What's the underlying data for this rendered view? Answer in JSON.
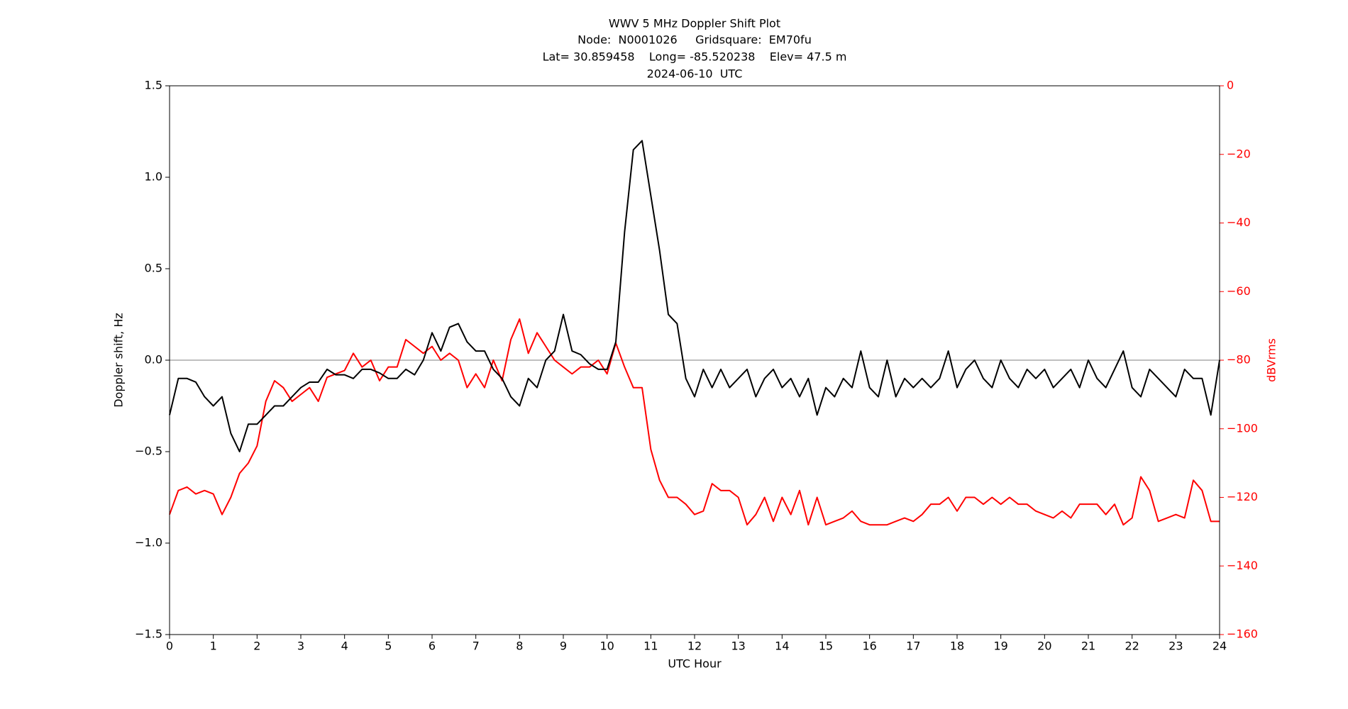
{
  "chart_data": {
    "type": "line",
    "title": [
      "WWV 5 MHz Doppler Shift Plot",
      "Node:  N0001026     Gridsquare:  EM70fu",
      "Lat= 30.859458    Long= -85.520238    Elev= 47.5 m",
      "2024-06-10  UTC"
    ],
    "xlabel": "UTC Hour",
    "ylabel": "Doppler shift, Hz",
    "y2label": "dBVrms",
    "xlim": [
      0,
      24
    ],
    "xticks": [
      0,
      1,
      2,
      3,
      4,
      5,
      6,
      7,
      8,
      9,
      10,
      11,
      12,
      13,
      14,
      15,
      16,
      17,
      18,
      19,
      20,
      21,
      22,
      23,
      24
    ],
    "ylim": [
      -1.5,
      1.5
    ],
    "yticks": [
      {
        "value": -1.5,
        "label": "−1.5"
      },
      {
        "value": -1.0,
        "label": "−1.0"
      },
      {
        "value": -0.5,
        "label": "−0.5"
      },
      {
        "value": 0,
        "label": "0.0"
      },
      0.5,
      {
        "value": 1,
        "label": "1.0"
      },
      1.5
    ],
    "y2lim": [
      -160,
      0
    ],
    "y2ticks": [
      {
        "value": -160,
        "label": "−160"
      },
      {
        "value": -140,
        "label": "−140"
      },
      {
        "value": -120,
        "label": "−120"
      },
      {
        "value": -100,
        "label": "−100"
      },
      {
        "value": -80,
        "label": "−80"
      },
      {
        "value": -60,
        "label": "−60"
      },
      {
        "value": -40,
        "label": "−40"
      },
      {
        "value": -20,
        "label": "−20"
      },
      0
    ],
    "axhline": 0,
    "axhline_color": "#999999",
    "x": [
      0,
      0.2,
      0.4,
      0.6,
      0.8,
      1,
      1.2,
      1.4,
      1.6,
      1.8,
      2,
      2.2,
      2.4,
      2.6,
      2.8,
      3,
      3.2,
      3.4,
      3.6,
      3.8,
      4,
      4.2,
      4.4,
      4.6,
      4.8,
      5,
      5.2,
      5.4,
      5.6,
      5.8,
      6,
      6.2,
      6.4,
      6.6,
      6.8,
      7,
      7.2,
      7.4,
      7.6,
      7.8,
      8,
      8.2,
      8.4,
      8.6,
      8.8,
      9,
      9.2,
      9.4,
      9.6,
      9.8,
      10,
      10.2,
      10.4,
      10.6,
      10.8,
      11,
      11.2,
      11.4,
      11.6,
      11.8,
      12,
      12.2,
      12.4,
      12.6,
      12.8,
      13,
      13.2,
      13.4,
      13.6,
      13.8,
      14,
      14.2,
      14.4,
      14.6,
      14.8,
      15,
      15.2,
      15.4,
      15.6,
      15.8,
      16,
      16.2,
      16.4,
      16.6,
      16.8,
      17,
      17.2,
      17.4,
      17.6,
      17.8,
      18,
      18.2,
      18.4,
      18.6,
      18.8,
      19,
      19.2,
      19.4,
      19.6,
      19.8,
      20,
      20.2,
      20.4,
      20.6,
      20.8,
      21,
      21.2,
      21.4,
      21.6,
      21.8,
      22,
      22.2,
      22.4,
      22.6,
      22.8,
      23,
      23.2,
      23.4,
      23.6,
      23.8,
      24
    ],
    "series": [
      {
        "color": "#000000",
        "values": [
          -0.3,
          -0.1,
          -0.1,
          -0.12,
          -0.2,
          -0.25,
          -0.2,
          -0.4,
          -0.5,
          -0.35,
          -0.35,
          -0.3,
          -0.25,
          -0.25,
          -0.2,
          -0.15,
          -0.12,
          -0.12,
          -0.05,
          -0.08,
          -0.08,
          -0.1,
          -0.05,
          -0.05,
          -0.07,
          -0.1,
          -0.1,
          -0.05,
          -0.08,
          0.0,
          0.15,
          0.05,
          0.18,
          0.2,
          0.1,
          0.05,
          0.05,
          -0.05,
          -0.1,
          -0.2,
          -0.25,
          -0.1,
          -0.15,
          0.0,
          0.05,
          0.25,
          0.05,
          0.03,
          -0.02,
          -0.05,
          -0.05,
          0.1,
          0.7,
          1.15,
          1.2,
          0.9,
          0.6,
          0.25,
          0.2,
          -0.1,
          -0.2,
          -0.05,
          -0.15,
          -0.05,
          -0.15,
          -0.1,
          -0.05,
          -0.2,
          -0.1,
          -0.05,
          -0.15,
          -0.1,
          -0.2,
          -0.1,
          -0.3,
          -0.15,
          -0.2,
          -0.1,
          -0.15,
          0.05,
          -0.15,
          -0.2,
          0.0,
          -0.2,
          -0.1,
          -0.15,
          -0.1,
          -0.15,
          -0.1,
          0.05,
          -0.15,
          -0.05,
          0.0,
          -0.1,
          -0.15,
          0.0,
          -0.1,
          -0.15,
          -0.05,
          -0.1,
          -0.05,
          -0.15,
          -0.1,
          -0.05,
          -0.15,
          0.0,
          -0.1,
          -0.15,
          -0.05,
          0.05,
          -0.15,
          -0.2,
          -0.05,
          -0.1,
          -0.15,
          -0.2,
          -0.05,
          -0.1,
          -0.1,
          -0.3,
          0.0
        ]
      },
      {
        "color": "#ff0000",
        "axis": "y2",
        "values": [
          -125,
          -118,
          -117,
          -119,
          -118,
          -119,
          -125,
          -120,
          -113,
          -110,
          -105,
          -92,
          -86,
          -88,
          -92,
          -90,
          -88,
          -92,
          -85,
          -84,
          -83,
          -78,
          -82,
          -80,
          -86,
          -82,
          -82,
          -74,
          -76,
          -78,
          -76,
          -80,
          -78,
          -80,
          -88,
          -84,
          -88,
          -80,
          -86,
          -74,
          -68,
          -78,
          -72,
          -76,
          -80,
          -82,
          -84,
          -82,
          -82,
          -80,
          -84,
          -75,
          -82,
          -88,
          -88,
          -106,
          -115,
          -120,
          -120,
          -122,
          -125,
          -124,
          -116,
          -118,
          -118,
          -120,
          -128,
          -125,
          -120,
          -127,
          -120,
          -125,
          -118,
          -128,
          -120,
          -128,
          -127,
          -126,
          -124,
          -127,
          -128,
          -128,
          -128,
          -127,
          -126,
          -127,
          -125,
          -122,
          -122,
          -120,
          -124,
          -120,
          -120,
          -122,
          -120,
          -122,
          -120,
          -122,
          -122,
          -124,
          -125,
          -126,
          -124,
          -126,
          -122,
          -122,
          -122,
          -125,
          -122,
          -128,
          -126,
          -114,
          -118,
          -127,
          -126,
          -125,
          -126,
          -115,
          -118,
          -127,
          -127
        ]
      }
    ]
  }
}
